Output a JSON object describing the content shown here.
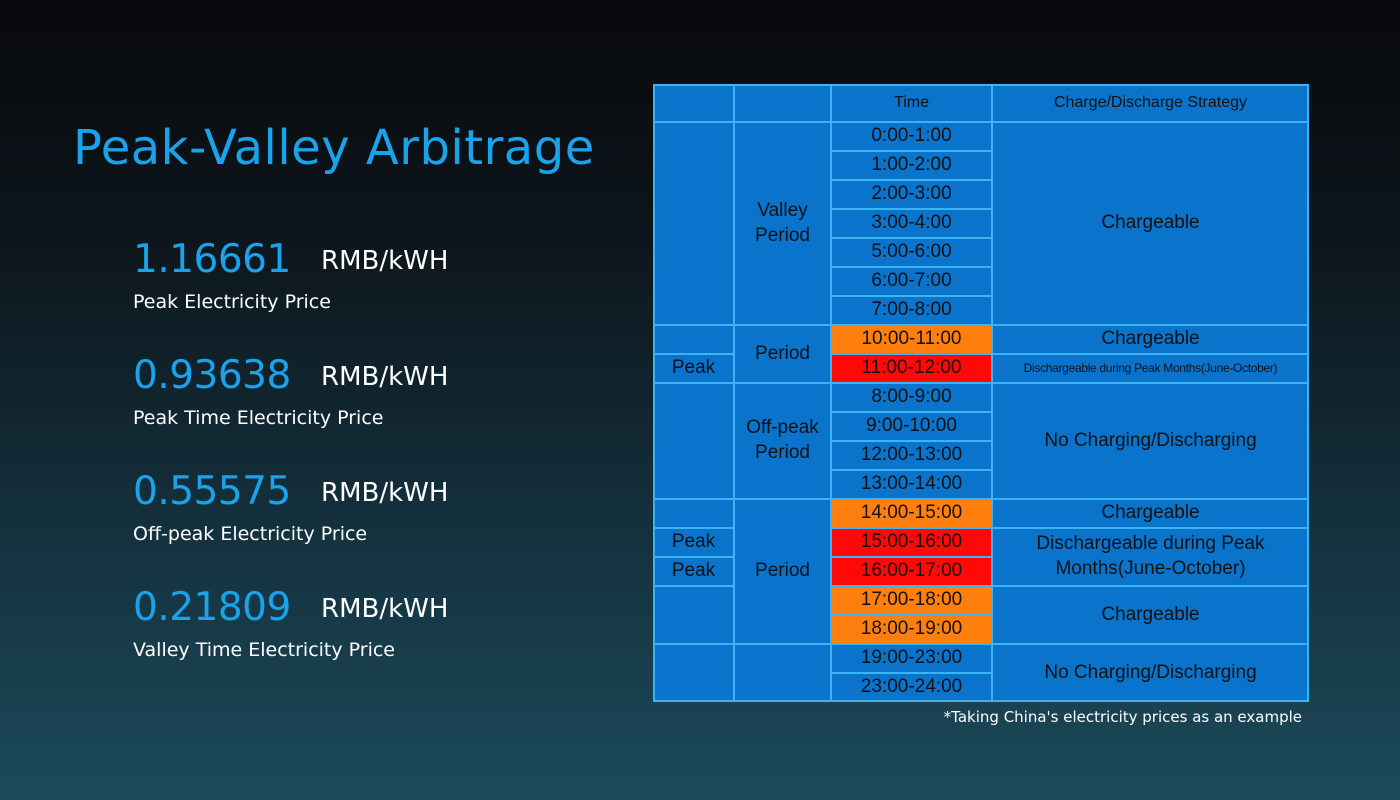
{
  "title": "Peak-Valley Arbitrage",
  "prices": [
    {
      "value": "1.16661",
      "unit": "RMB/kWH",
      "label": "Peak Electricity Price"
    },
    {
      "value": "0.93638",
      "unit": "RMB/kWH",
      "label": "Peak Time Electricity Price"
    },
    {
      "value": "0.55575",
      "unit": "RMB/kWH",
      "label": "Off-peak Electricity Price"
    },
    {
      "value": "0.21809",
      "unit": "RMB/kWH",
      "label": "Valley Time Electricity Price"
    }
  ],
  "table": {
    "headers": {
      "time": "Time",
      "strategy": "Charge/Discharge Strategy"
    },
    "times": [
      "0:00-1:00",
      "1:00-2:00",
      "2:00-3:00",
      "3:00-4:00",
      "5:00-6:00",
      "6:00-7:00",
      "7:00-8:00",
      "10:00-11:00",
      "11:00-12:00",
      "8:00-9:00",
      "9:00-10:00",
      "12:00-13:00",
      "13:00-14:00",
      "14:00-15:00",
      "15:00-16:00",
      "16:00-17:00",
      "17:00-18:00",
      "18:00-19:00",
      "19:00-23:00",
      "23:00-24:00"
    ],
    "periods": [
      "Valley\nPeriod",
      "Period",
      "Off-peak\nPeriod",
      "Period"
    ],
    "peak_labels": [
      "Peak",
      "Peak",
      "Peak"
    ],
    "strategies": [
      "Chargeable",
      "Chargeable",
      "Dischargeable during Peak Months(June-October)",
      "No Charging/Discharging",
      "Chargeable",
      "Dischargeable during Peak\nMonths(June-October)",
      "Chargeable",
      "No Charging/Discharging"
    ]
  },
  "footnote": "*Taking China's electricity prices as an example",
  "colors": {
    "accent": "#1aa3ea",
    "table_bg": "#0a73cc",
    "grid_line": "#3ab4f2",
    "orange_cell": "#ff7f0e",
    "red_cell": "#ff0808"
  }
}
